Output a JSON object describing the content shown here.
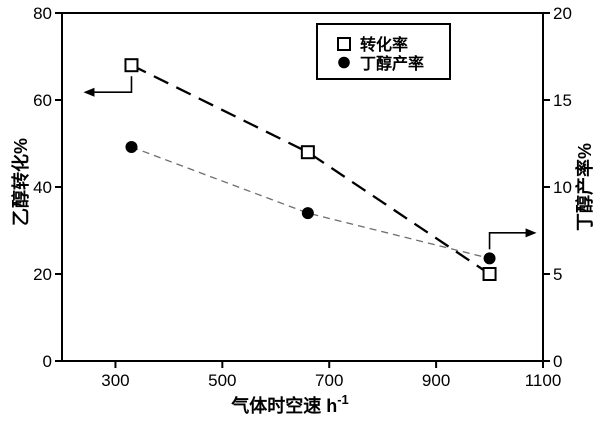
{
  "figure": {
    "background": "#ffffff",
    "axis_color": "#000000"
  },
  "chart_data": {
    "type": "line",
    "title": "",
    "grid": false,
    "x_axis": {
      "label": "气体时空速 h",
      "label_superscript": "-1",
      "range": [
        200,
        1100
      ],
      "ticks": [
        300,
        500,
        700,
        900,
        1100
      ]
    },
    "y_axis_left": {
      "label": "乙醇转化%",
      "range": [
        0,
        80
      ],
      "ticks": [
        0,
        20,
        40,
        60,
        80
      ]
    },
    "y_axis_right": {
      "label": "丁醇产率%",
      "range": [
        0,
        20
      ],
      "ticks": [
        0,
        5,
        10,
        15,
        20
      ]
    },
    "series": [
      {
        "name": "转化率",
        "axis": "left",
        "marker": "open-square",
        "line_style": "long-dash",
        "line_color": "#000000",
        "marker_color": "#000000",
        "x": [
          330,
          660,
          1000
        ],
        "values": [
          68,
          48,
          20
        ]
      },
      {
        "name": "丁醇产率",
        "axis": "right",
        "marker": "filled-circle",
        "line_style": "short-dash",
        "line_color": "#6e6e6e",
        "marker_color": "#000000",
        "x": [
          330,
          660,
          1000
        ],
        "values": [
          12.3,
          8.5,
          5.9
        ]
      }
    ],
    "legend": {
      "position": "top-center",
      "entries": [
        {
          "label": "转化率",
          "marker": "open-square"
        },
        {
          "label": "丁醇产率",
          "marker": "filled-circle"
        }
      ]
    },
    "annotations": [
      {
        "type": "elbow-arrow",
        "points_to": "left-axis",
        "series_index": 0,
        "point_index": 0
      },
      {
        "type": "elbow-arrow",
        "points_to": "right-axis",
        "series_index": 1,
        "point_index": 2
      }
    ]
  }
}
